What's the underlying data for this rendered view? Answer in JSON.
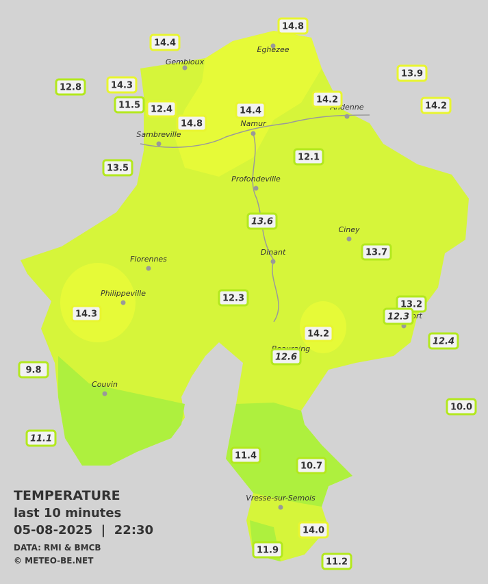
{
  "legend": {
    "title": "TEMPERATURE",
    "period": "last 10 minutes",
    "datetime": "05-08-2025  |  22:30",
    "source": "DATA: RMI & BMCB",
    "credit": "© METEO-BE.NET"
  },
  "cities": [
    "Eghezee",
    "Gembloux",
    "Andenne",
    "Namur",
    "Sambreville",
    "Profondeville",
    "Ciney",
    "Dinant",
    "Florennes",
    "Philippeville",
    "Couvin",
    "Rochefort",
    "Beauraing",
    "Vresse-sur-Semois"
  ],
  "stations": [
    "14.8",
    "14.4",
    "14.3",
    "12.8",
    "11.5",
    "12.4",
    "14.8",
    "14.4",
    "14.2",
    "13.9",
    "14.2",
    "12.1",
    "13.5",
    "13.6",
    "13.7",
    "12.3",
    "14.3",
    "13.2",
    "12.3",
    "14.2",
    "12.4",
    "12.6",
    "9.8",
    "10.0",
    "11.1",
    "11.4",
    "10.7",
    "14.0",
    "11.9",
    "11.2"
  ]
}
